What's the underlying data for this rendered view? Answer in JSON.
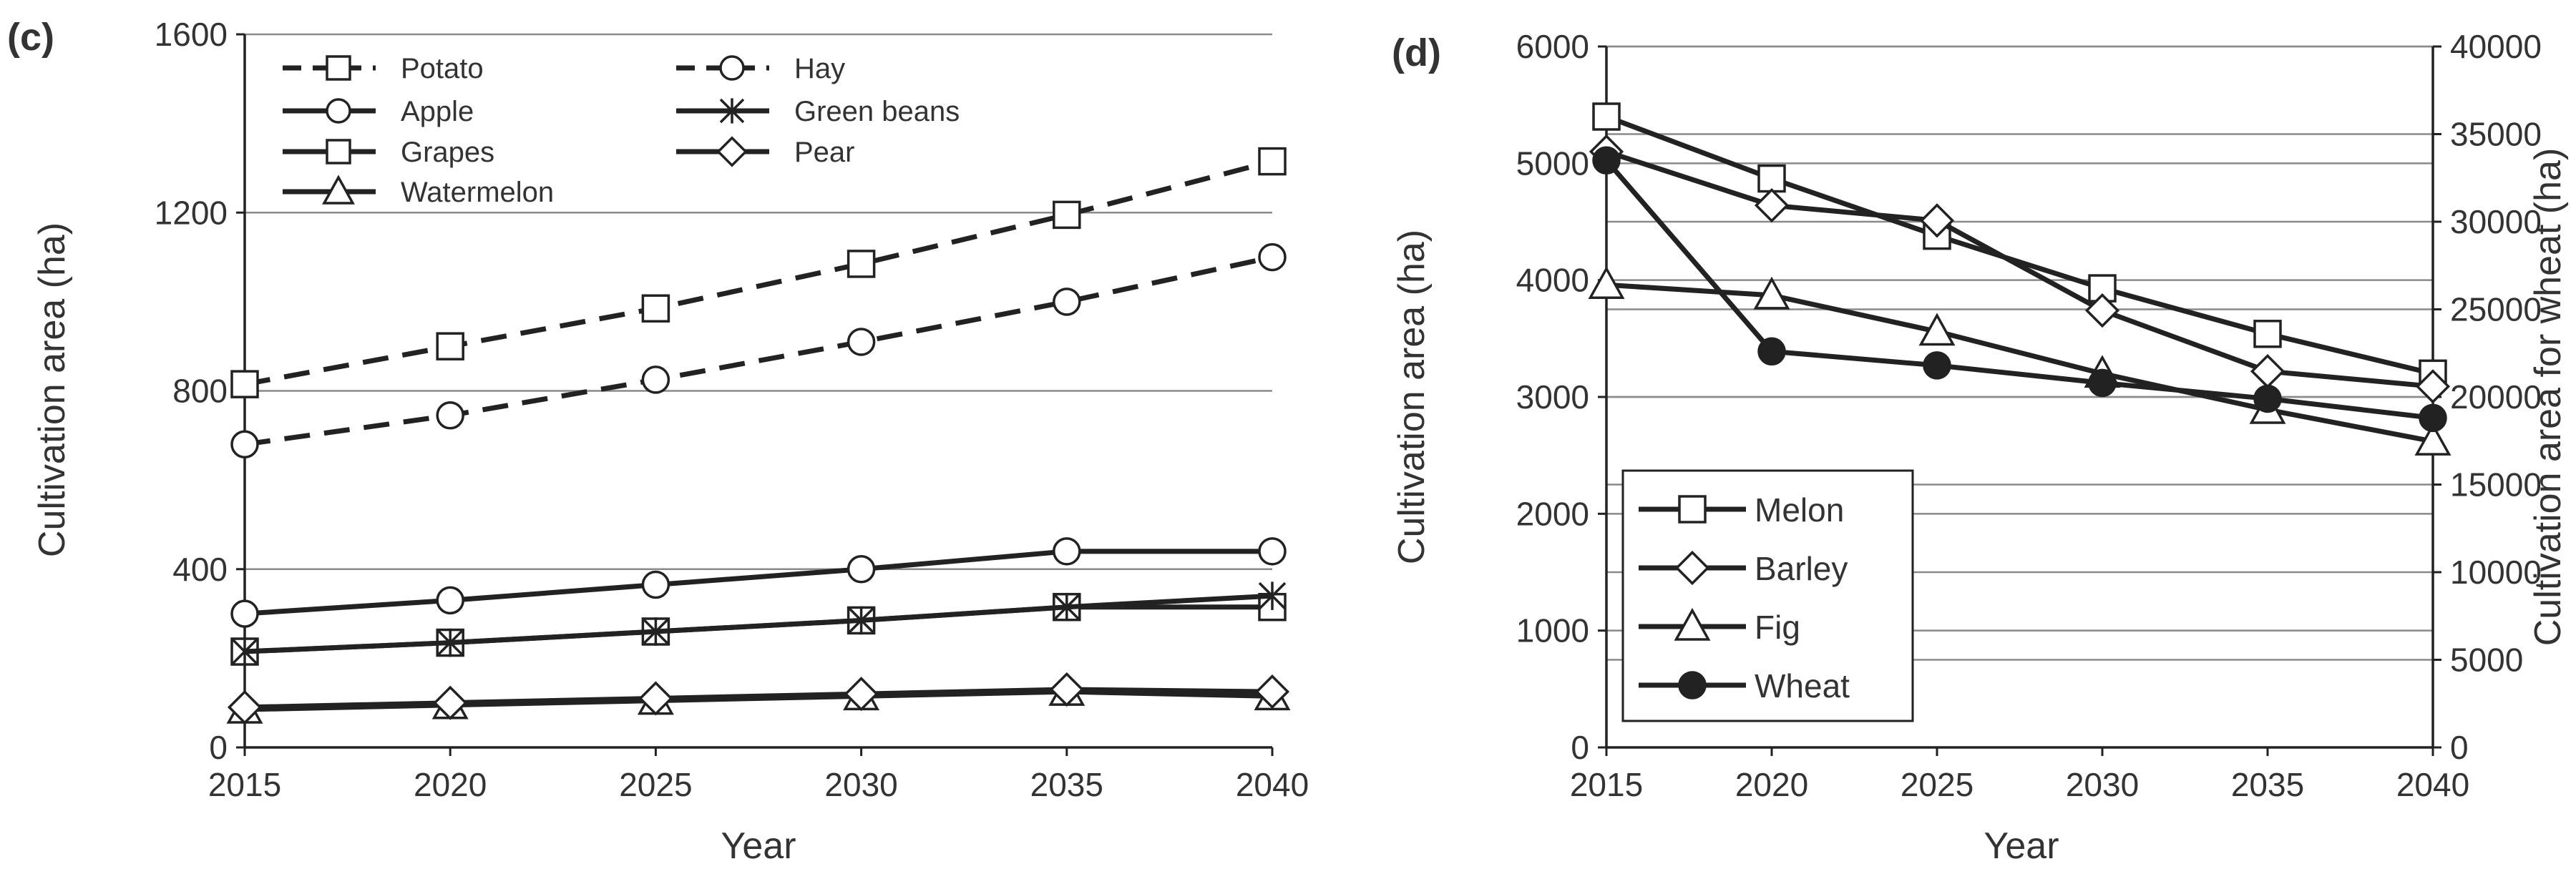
{
  "chart_data": [
    {
      "panel": "(c)",
      "type": "line",
      "xlabel": "Year",
      "ylabel": "Cultivation  area (ha)",
      "x": [
        2015,
        2020,
        2025,
        2030,
        2035,
        2040
      ],
      "x_ticks": [
        "2015",
        "2020",
        "2025",
        "2030",
        "2035",
        "2040"
      ],
      "ylim": [
        0,
        1600
      ],
      "y_ticks": [
        "0",
        "400",
        "800",
        "1200",
        "1600"
      ],
      "grid": "horizontal",
      "legend_position": "top-left",
      "series": [
        {
          "name": "Potato",
          "marker": "square",
          "line": "dashed",
          "values": [
            815,
            900,
            985,
            1085,
            1195,
            1315
          ]
        },
        {
          "name": "Hay",
          "marker": "circle",
          "line": "dashed",
          "values": [
            680,
            745,
            825,
            910,
            1000,
            1100
          ]
        },
        {
          "name": "Apple",
          "marker": "circle",
          "line": "solid",
          "values": [
            300,
            330,
            365,
            400,
            440,
            440
          ]
        },
        {
          "name": "Green beans",
          "marker": "asterisk",
          "line": "solid",
          "values": [
            215,
            235,
            260,
            285,
            315,
            340
          ]
        },
        {
          "name": "Grapes",
          "marker": "square",
          "line": "solid",
          "values": [
            215,
            235,
            260,
            285,
            315,
            315
          ]
        },
        {
          "name": "Pear",
          "marker": "diamond",
          "line": "solid",
          "values": [
            90,
            100,
            110,
            120,
            130,
            125
          ]
        },
        {
          "name": "Watermelon",
          "marker": "triangle",
          "line": "solid",
          "values": [
            85,
            95,
            105,
            115,
            125,
            115
          ]
        }
      ]
    },
    {
      "panel": "(d)",
      "type": "line",
      "xlabel": "Year",
      "ylabel": "Cultivation  area (ha)",
      "ylabel_right": "Cultivation  area for wheat (ha)",
      "x": [
        2015,
        2020,
        2025,
        2030,
        2035,
        2040
      ],
      "x_ticks": [
        "2015",
        "2020",
        "2025",
        "2030",
        "2035",
        "2040"
      ],
      "ylim": [
        0,
        6000
      ],
      "y_ticks": [
        "0",
        "1000",
        "2000",
        "3000",
        "4000",
        "5000",
        "6000"
      ],
      "ylim_right": [
        0,
        40000
      ],
      "y_ticks_right": [
        "0",
        "5000",
        "10000",
        "15000",
        "20000",
        "25000",
        "30000",
        "35000",
        "40000"
      ],
      "grid": "horizontal",
      "legend_position": "bottom-left",
      "series": [
        {
          "name": "Melon",
          "marker": "square",
          "axis": "left",
          "values": [
            5400,
            4870,
            4380,
            3930,
            3540,
            3200
          ]
        },
        {
          "name": "Barley",
          "marker": "diamond",
          "axis": "left",
          "values": [
            5100,
            4640,
            4510,
            3740,
            3220,
            3090
          ]
        },
        {
          "name": "Fig",
          "marker": "triangle",
          "axis": "left",
          "values": [
            3960,
            3870,
            3560,
            3200,
            2890,
            2620
          ]
        },
        {
          "name": "Wheat",
          "marker": "filled-circle",
          "axis": "right",
          "values": [
            33500,
            22600,
            21800,
            20800,
            19900,
            18800
          ]
        }
      ]
    }
  ]
}
